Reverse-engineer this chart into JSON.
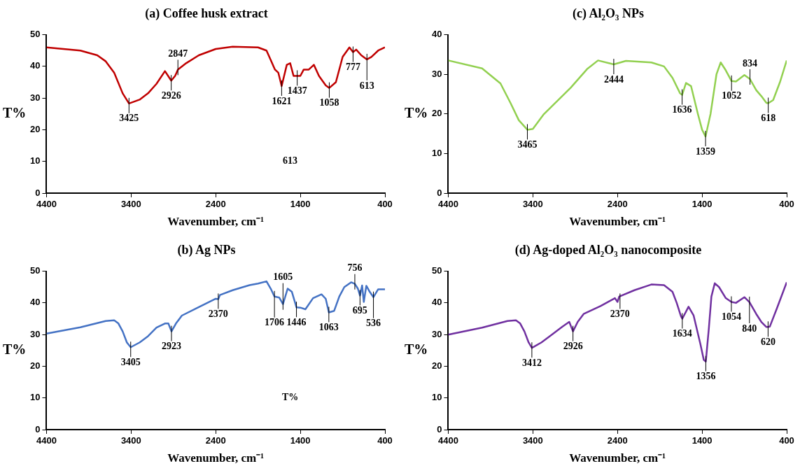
{
  "chart_data": [
    {
      "type": "line",
      "title": "(a) Coffee husk extract",
      "xlabel": "Wavenumber, cm⁻¹",
      "ylabel": "T%",
      "xlim": [
        4400,
        400
      ],
      "xticks": [
        4400,
        3400,
        2400,
        1400,
        400
      ],
      "ylim": [
        0,
        50
      ],
      "yticks": [
        0,
        10,
        20,
        30,
        40,
        50
      ],
      "grid": false,
      "legend": false,
      "marker": "none",
      "x": [
        4400,
        4000,
        3800,
        3700,
        3600,
        3500,
        3425,
        3300,
        3200,
        3100,
        3000,
        2926,
        2880,
        2847,
        2750,
        2600,
        2400,
        2200,
        1900,
        1800,
        1750,
        1700,
        1660,
        1621,
        1560,
        1520,
        1480,
        1400,
        1360,
        1300,
        1240,
        1180,
        1100,
        1058,
        980,
        900,
        820,
        777,
        740,
        680,
        613,
        560,
        480,
        400
      ],
      "series": [
        {
          "color": "#c00000",
          "values": [
            46,
            45,
            43.5,
            41.6,
            38,
            31.5,
            28.3,
            29.5,
            31.5,
            34.5,
            38.5,
            35.5,
            37,
            39,
            41,
            43.5,
            45.5,
            46.2,
            46,
            45,
            42,
            39,
            38,
            33.8,
            40.5,
            41,
            37,
            37,
            39,
            39,
            40.5,
            37,
            34,
            33.2,
            35,
            43,
            46,
            44.5,
            45.3,
            43.5,
            42.2,
            43,
            45,
            46
          ]
        }
      ],
      "annotations": [
        {
          "text": "3425",
          "x": 3425,
          "y": 28.3
        },
        {
          "text": "2926",
          "x": 2926,
          "y": 35.5
        },
        {
          "text": "2847",
          "x": 2847,
          "y": 39
        },
        {
          "text": "1621",
          "x": 1621,
          "y": 33.8
        },
        {
          "text": "1437",
          "x": 1437,
          "y": 37
        },
        {
          "text": "1058",
          "x": 1058,
          "y": 33.2
        },
        {
          "text": "777",
          "x": 777,
          "y": 44.5
        },
        {
          "text": "613",
          "x": 613,
          "y": 42.2
        },
        "613"
      ]
    },
    {
      "type": "line",
      "title": "(c) Al₂O₃ NPs",
      "xlabel": "Wavenumber, cm⁻¹",
      "ylabel": "T%",
      "xlim": [
        4400,
        400
      ],
      "xticks": [
        4400,
        3400,
        2400,
        1400,
        400
      ],
      "ylim": [
        0,
        40
      ],
      "yticks": [
        0,
        10,
        20,
        30,
        40
      ],
      "grid": false,
      "legend": false,
      "marker": "none",
      "x": [
        4400,
        4000,
        3783,
        3663,
        3566,
        3465,
        3400,
        3276,
        2953,
        2760,
        2630,
        2444,
        2300,
        2000,
        1850,
        1750,
        1660,
        1636,
        1590,
        1530,
        1450,
        1400,
        1359,
        1300,
        1230,
        1180,
        1120,
        1052,
        1000,
        900,
        834,
        760,
        700,
        640,
        618,
        560,
        480,
        400
      ],
      "series": [
        {
          "color": "#92d050",
          "values": [
            33.5,
            31.5,
            27.7,
            22.7,
            18.4,
            16,
            16.2,
            19.8,
            26.6,
            31.3,
            33.5,
            32.5,
            33.4,
            33,
            32,
            29.1,
            25.2,
            24.8,
            27.8,
            27,
            20,
            16,
            14.3,
            20,
            30,
            33,
            31,
            28.3,
            28.2,
            29.8,
            28.8,
            26,
            24.5,
            22.8,
            22.7,
            23.5,
            28,
            33.5
          ]
        }
      ],
      "annotations": [
        {
          "text": "3465",
          "x": 3465,
          "y": 16
        },
        {
          "text": "2444",
          "x": 2444,
          "y": 32.5
        },
        {
          "text": "1636",
          "x": 1636,
          "y": 24.8
        },
        {
          "text": "1359",
          "x": 1359,
          "y": 14.3
        },
        {
          "text": "1052",
          "x": 1052,
          "y": 28.3
        },
        {
          "text": "834",
          "x": 834,
          "y": 28.8
        },
        {
          "text": "618",
          "x": 618,
          "y": 22.7
        }
      ]
    },
    {
      "type": "line",
      "title": "(b) Ag NPs",
      "xlabel": "Wavenumber, cm⁻¹",
      "ylabel": "T%",
      "xlim": [
        4400,
        400
      ],
      "xticks": [
        4400,
        3400,
        2400,
        1400,
        400
      ],
      "ylim": [
        0,
        50
      ],
      "yticks": [
        0,
        10,
        20,
        30,
        40,
        50
      ],
      "grid": false,
      "legend": false,
      "marker": "none",
      "x": [
        4400,
        4000,
        3700,
        3600,
        3550,
        3500,
        3450,
        3405,
        3300,
        3200,
        3100,
        3000,
        2960,
        2923,
        2870,
        2800,
        2600,
        2400,
        2370,
        2350,
        2200,
        2000,
        1900,
        1800,
        1750,
        1706,
        1650,
        1605,
        1550,
        1500,
        1446,
        1400,
        1340,
        1250,
        1150,
        1100,
        1063,
        1000,
        940,
        880,
        800,
        756,
        720,
        695,
        670,
        650,
        620,
        580,
        536,
        480,
        400
      ],
      "series": [
        {
          "color": "#4472c4",
          "values": [
            30.3,
            32.3,
            34.3,
            34.5,
            33.5,
            31,
            27.5,
            26,
            27.5,
            29.5,
            32.2,
            33.5,
            33.5,
            31,
            33.5,
            36,
            38.7,
            41.3,
            41.2,
            42.5,
            44,
            45.6,
            46.1,
            46.8,
            44.5,
            42,
            41.7,
            39.6,
            44.5,
            43.5,
            38.6,
            38.5,
            38,
            41.5,
            42.7,
            41.3,
            37,
            37.5,
            42,
            45,
            46.5,
            46,
            44.5,
            42.3,
            45.5,
            40.3,
            45.4,
            43.5,
            41.8,
            44.3,
            44.3
          ]
        }
      ],
      "annotations": [
        {
          "text": "3405",
          "x": 3405,
          "y": 26
        },
        {
          "text": "2923",
          "x": 2923,
          "y": 31
        },
        {
          "text": "2370",
          "x": 2370,
          "y": 41.2
        },
        {
          "text": "1706",
          "x": 1706,
          "y": 42
        },
        {
          "text": "1605",
          "x": 1605,
          "y": 39.6
        },
        {
          "text": "1446",
          "x": 1446,
          "y": 38.6
        },
        {
          "text": "1063",
          "x": 1063,
          "y": 37
        },
        {
          "text": "756",
          "x": 756,
          "y": 46
        },
        {
          "text": "695",
          "x": 695,
          "y": 42.3
        },
        {
          "text": "536",
          "x": 536,
          "y": 41.8
        },
        "T%"
      ]
    },
    {
      "type": "line",
      "title": "(d) Ag-doped Al₂O₃ nanocomposite",
      "xlabel": "Wavenumber, cm⁻¹",
      "ylabel": "T%",
      "xlim": [
        4400,
        400
      ],
      "xticks": [
        4400,
        3400,
        2400,
        1400,
        400
      ],
      "ylim": [
        0,
        50
      ],
      "yticks": [
        0,
        10,
        20,
        30,
        40,
        50
      ],
      "grid": false,
      "legend": false,
      "marker": "none",
      "x": [
        4400,
        4000,
        3700,
        3600,
        3550,
        3500,
        3450,
        3412,
        3300,
        3200,
        3050,
        2970,
        2926,
        2870,
        2800,
        2600,
        2430,
        2400,
        2380,
        2200,
        2000,
        1850,
        1750,
        1700,
        1650,
        1634,
        1560,
        1500,
        1420,
        1380,
        1356,
        1320,
        1290,
        1250,
        1200,
        1120,
        1054,
        1000,
        900,
        840,
        760,
        700,
        640,
        620,
        600,
        520,
        400
      ],
      "series": [
        {
          "color": "#7030a0",
          "values": [
            30,
            32.2,
            34.3,
            34.5,
            33.5,
            31,
            27.5,
            25.8,
            27.5,
            29.5,
            32.5,
            34,
            31,
            34,
            36.5,
            39,
            41.5,
            40.3,
            42,
            44,
            45.8,
            45.6,
            43.5,
            40,
            35.8,
            35,
            38.8,
            36,
            27,
            22,
            21.5,
            32,
            42,
            46.2,
            45,
            41.5,
            40.3,
            40,
            41.8,
            40.2,
            36.5,
            34,
            32.4,
            32.4,
            32.5,
            38,
            46.5
          ]
        }
      ],
      "annotations": [
        {
          "text": "3412",
          "x": 3412,
          "y": 25.8
        },
        {
          "text": "2926",
          "x": 2926,
          "y": 31
        },
        {
          "text": "2370",
          "x": 2370,
          "y": 41.2
        },
        {
          "text": "1634",
          "x": 1634,
          "y": 35
        },
        {
          "text": "1356",
          "x": 1356,
          "y": 21.5
        },
        {
          "text": "1054",
          "x": 1054,
          "y": 40.3
        },
        {
          "text": "840",
          "x": 840,
          "y": 40.2
        },
        {
          "text": "620",
          "x": 620,
          "y": 32.4
        }
      ]
    }
  ]
}
